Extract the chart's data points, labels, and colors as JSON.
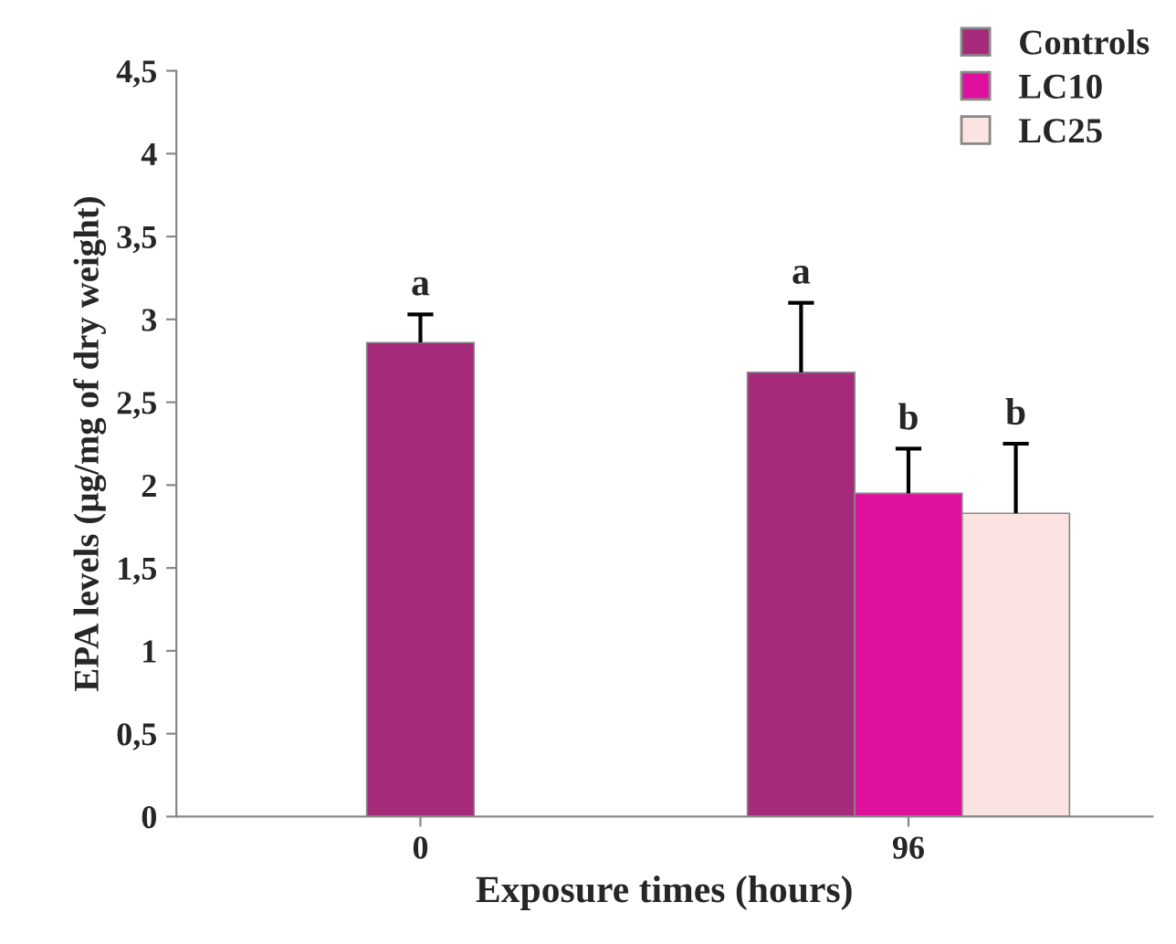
{
  "chart_data": {
    "type": "bar",
    "categories": [
      "0",
      "96"
    ],
    "series": [
      {
        "name": "Controls",
        "color": "#a52a7a",
        "values": [
          2.86,
          2.68
        ],
        "errors": [
          [
            2.86,
            3.03
          ],
          [
            2.68,
            3.1
          ]
        ],
        "value_labels": [
          "a",
          "a"
        ]
      },
      {
        "name": "LC10",
        "color": "#e0109e",
        "values": [
          null,
          1.95
        ],
        "errors": [
          null,
          [
            1.95,
            2.22
          ]
        ],
        "value_labels": [
          null,
          "b"
        ]
      },
      {
        "name": "LC25",
        "color": "#fbe3e1",
        "values": [
          null,
          1.83
        ],
        "errors": [
          null,
          [
            1.83,
            2.25
          ]
        ],
        "value_labels": [
          null,
          "b"
        ]
      }
    ],
    "xlabel": "Exposure times (hours)",
    "ylabel": "EPA levels (µg/mg of dry weight)",
    "ylim": [
      0,
      4.5
    ],
    "yticks": [
      0,
      {
        "value": 0.5,
        "label": "0,5"
      },
      1,
      {
        "value": 1.5,
        "label": "1,5"
      },
      2,
      {
        "value": 2.5,
        "label": "2,5"
      },
      3,
      {
        "value": 3.5,
        "label": "3,5"
      },
      4,
      {
        "value": 4.5,
        "label": "4,5"
      }
    ],
    "legend": "top right",
    "grid": false
  }
}
